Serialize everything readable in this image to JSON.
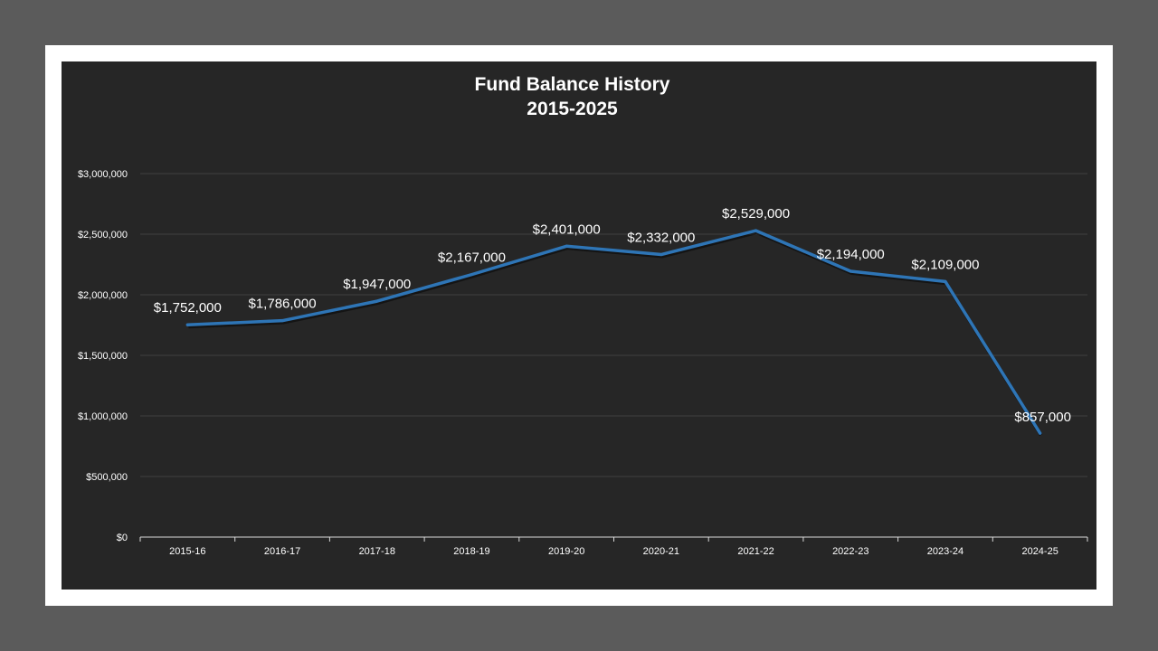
{
  "chart_data": {
    "type": "line",
    "title": "Fund Balance History",
    "subtitle": "2015-2025",
    "categories": [
      "2015-16",
      "2016-17",
      "2017-18",
      "2018-19",
      "2019-20",
      "2020-21",
      "2021-22",
      "2022-23",
      "2023-24",
      "2024-25"
    ],
    "series": [
      {
        "values": [
          1752000,
          1786000,
          1947000,
          2167000,
          2401000,
          2332000,
          2529000,
          2194000,
          2109000,
          857000
        ],
        "color": "#2e75b6"
      }
    ],
    "data_labels": [
      "$1,752,000",
      "$1,786,000",
      "$1,947,000",
      "$2,167,000",
      "$2,401,000",
      "$2,332,000",
      "$2,529,000",
      "$2,194,000",
      "$2,109,000",
      "$857,000"
    ],
    "yticks": [
      0,
      500000,
      1000000,
      1500000,
      2000000,
      2500000,
      3000000
    ],
    "ytick_labels": [
      "$0",
      "$500,000",
      "$1,000,000",
      "$1,500,000",
      "$2,000,000",
      "$2,500,000",
      "$3,000,000"
    ],
    "ylim": [
      0,
      3000000
    ],
    "grid": true,
    "legend": "none",
    "colors": {
      "background": "#262626",
      "frame": "#ffffff",
      "outer": "#5b5b5b",
      "gridline": "#404040",
      "text": "#ffffff"
    }
  }
}
